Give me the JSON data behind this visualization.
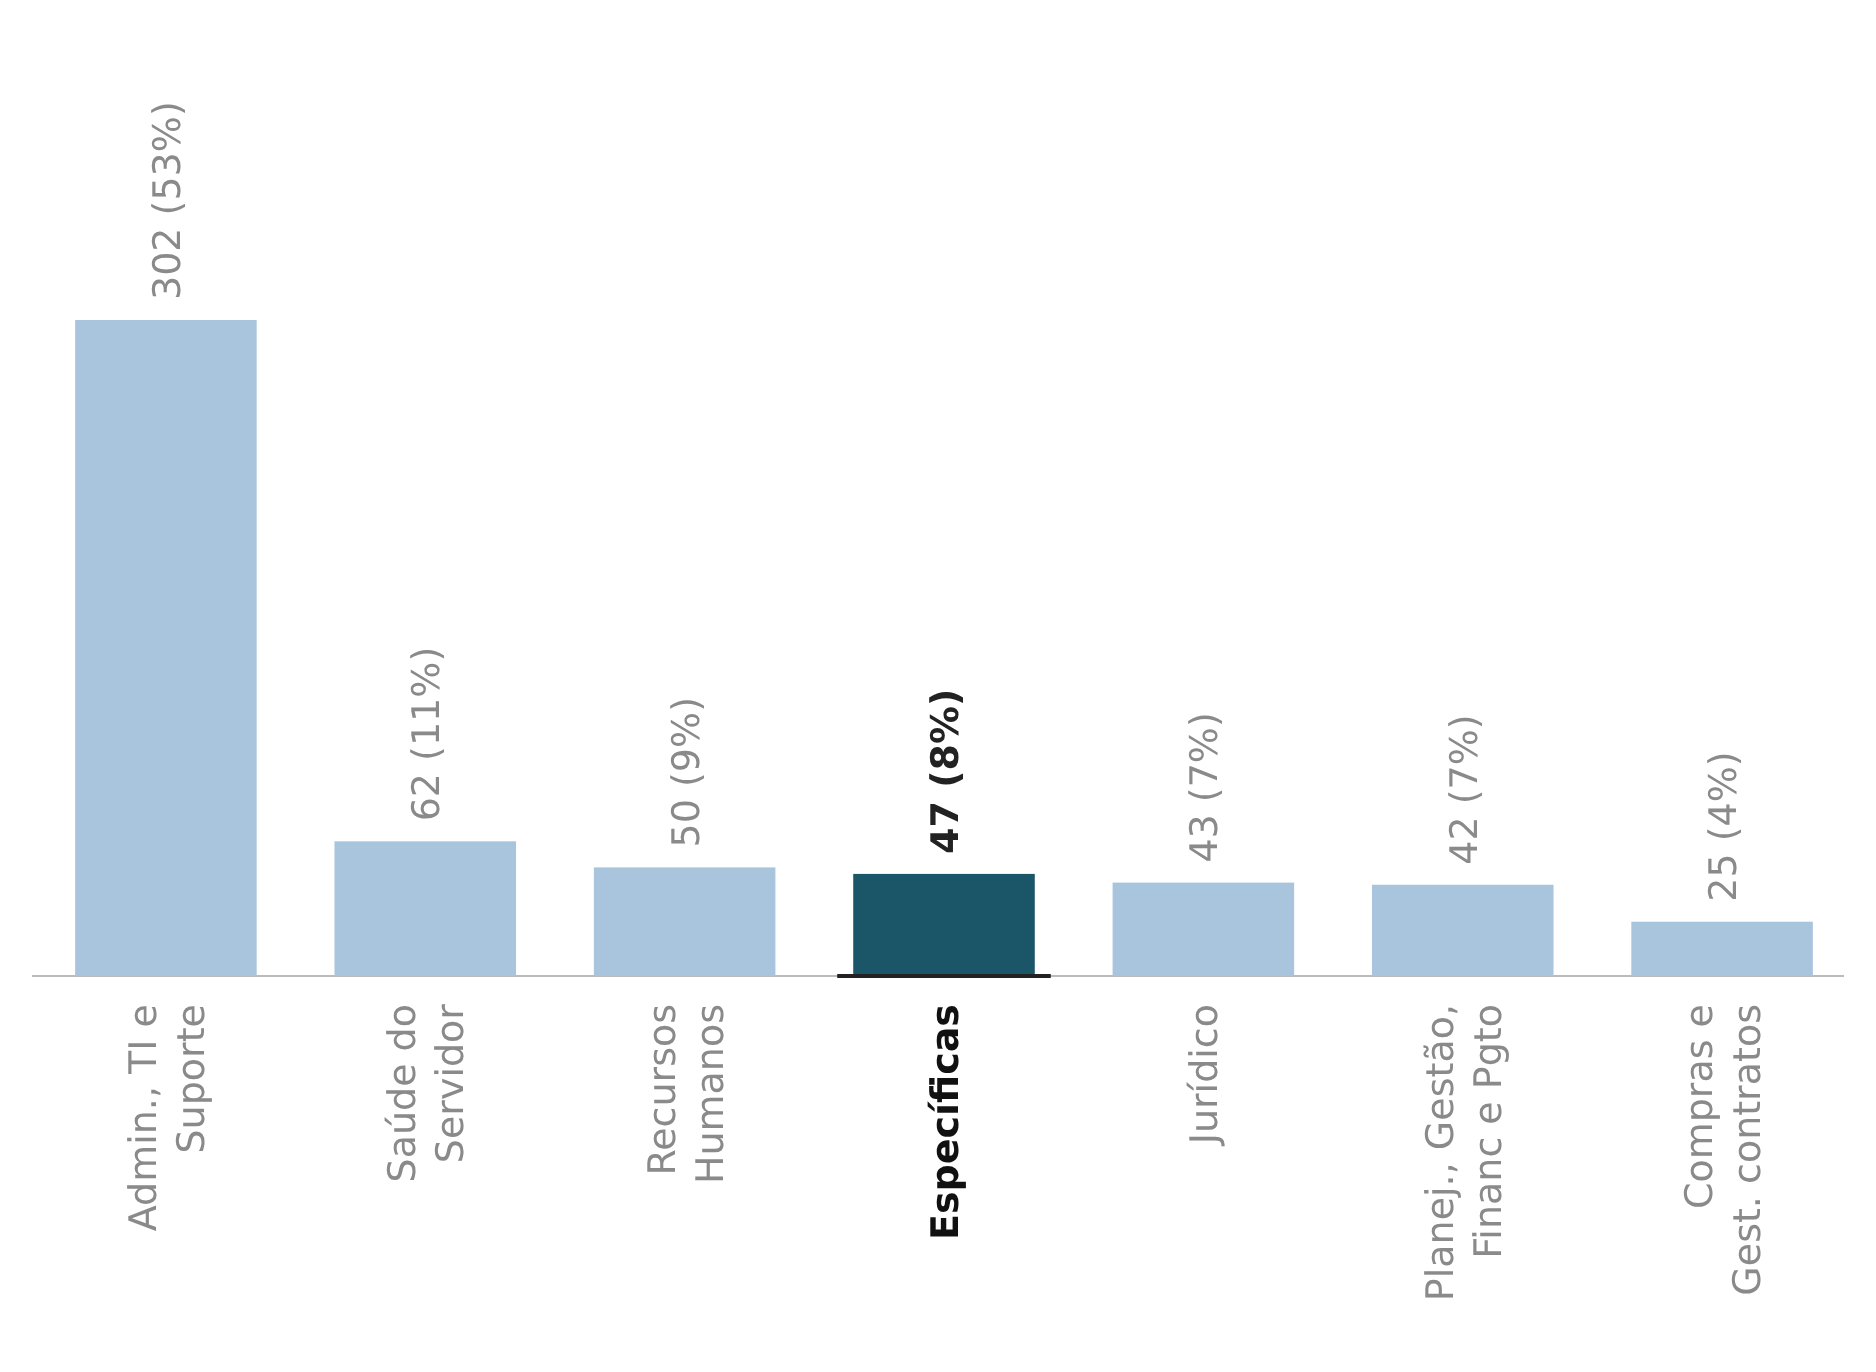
{
  "chart_data": {
    "type": "bar",
    "categories": [
      "Admin., TI e\nSuporte",
      "Saúde do\nServidor",
      "Recursos\nHumanos",
      "Específicas",
      "Jurídico",
      "Planej., Gestão,\nFinanc e Pgto",
      "Compras e\nGest. contratos"
    ],
    "values": [
      302,
      62,
      50,
      47,
      43,
      42,
      25
    ],
    "value_labels": [
      "302 (53%)",
      "62 (11%)",
      "50 (9%)",
      "47 (8%)",
      "43 (7%)",
      "42 (7%)",
      "25 (4%)"
    ],
    "colors": [
      "#a9c5dd",
      "#a9c5dd",
      "#a9c5dd",
      "#1b5568",
      "#a9c5dd",
      "#a9c5dd",
      "#a9c5dd"
    ]
  }
}
